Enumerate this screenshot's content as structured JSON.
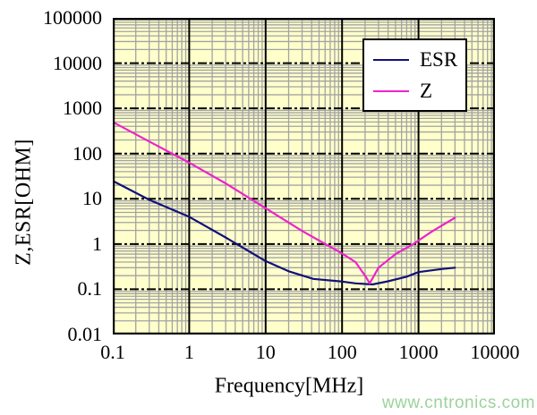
{
  "chart_data": {
    "type": "line",
    "title": "",
    "xlabel": "Frequency[MHz]",
    "ylabel": "Z,ESR[OHM]",
    "x_scale": "log",
    "y_scale": "log",
    "xlim": [
      0.1,
      10000
    ],
    "ylim": [
      0.01,
      100000
    ],
    "x_ticks": [
      "0.1",
      "1",
      "10",
      "100",
      "1000",
      "10000"
    ],
    "y_ticks": [
      "100000",
      "10000",
      "1000",
      "100",
      "10",
      "1",
      "0.1",
      "0.01"
    ],
    "grid": "log minor gridlines gray; major horizontal dashed black; major vertical solid black",
    "legend_position": "top-right",
    "plot_bg_color": "#FFFFCC",
    "minor_grid_color": "#A3A3A3",
    "major_grid_color": "#000000",
    "series": [
      {
        "name": "ESR",
        "color": "#10107A",
        "points": [
          [
            0.1,
            25
          ],
          [
            0.3,
            9.5
          ],
          [
            1,
            4
          ],
          [
            3,
            1.4
          ],
          [
            10,
            0.42
          ],
          [
            20,
            0.25
          ],
          [
            42,
            0.17
          ],
          [
            100,
            0.148
          ],
          [
            150,
            0.135
          ],
          [
            250,
            0.128
          ],
          [
            400,
            0.15
          ],
          [
            700,
            0.19
          ],
          [
            1000,
            0.24
          ],
          [
            2000,
            0.28
          ],
          [
            3000,
            0.3
          ]
        ]
      },
      {
        "name": "Z",
        "color": "#EE22CC",
        "points": [
          [
            0.1,
            500
          ],
          [
            0.3,
            185
          ],
          [
            1,
            63
          ],
          [
            3,
            22
          ],
          [
            10,
            6.2
          ],
          [
            30,
            1.95
          ],
          [
            100,
            0.62
          ],
          [
            150,
            0.4
          ],
          [
            200,
            0.2
          ],
          [
            230,
            0.135
          ],
          [
            300,
            0.3
          ],
          [
            500,
            0.6
          ],
          [
            851,
            1.0
          ],
          [
            1500,
            1.9
          ],
          [
            3000,
            3.8
          ]
        ]
      }
    ]
  },
  "watermark": {
    "text": "www.cntronics.com",
    "color": "#9CD29C"
  }
}
